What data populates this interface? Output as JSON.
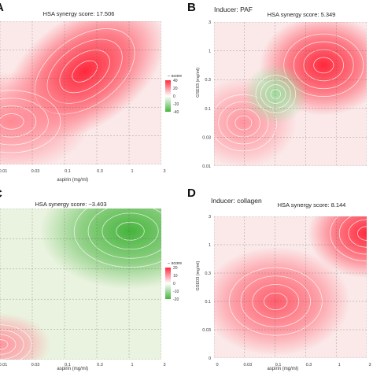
{
  "chart_data": [
    {
      "type": "heatmap",
      "panel_letter": "A",
      "inducer": "",
      "title": "HSA synergy score: 17.506",
      "xlabel": "aspirin (mg/ml)",
      "ylabel": "",
      "x_ticks": [
        "0.01",
        "0.03",
        "0.1",
        "0.3",
        "1",
        "3"
      ],
      "y_ticks": [],
      "legend": {
        "title": "score",
        "ticks": [
          "40",
          "20",
          "0",
          "-20",
          "-40"
        ],
        "range": [
          -40,
          40
        ]
      },
      "hotspots": [
        {
          "x": 0.2,
          "y": 0.35,
          "score": 40,
          "sx": 0.8,
          "sy": 0.55
        },
        {
          "x": 0.015,
          "y": 0.7,
          "score": 22,
          "sx": 0.7,
          "sy": 0.5
        }
      ]
    },
    {
      "type": "heatmap",
      "panel_letter": "B",
      "inducer": "Inducer: PAF",
      "title": "HSA synergy score: 5.349",
      "xlabel": "",
      "ylabel": "GSE03 (mg/ml)",
      "x_ticks": [],
      "y_ticks": [
        "3",
        "1",
        "0.3",
        "0.1",
        "0.03",
        "0.01"
      ],
      "legend": null,
      "hotspots": [
        {
          "x": 0.6,
          "y": 0.3,
          "score": 40,
          "sx": 0.6,
          "sy": 0.5
        },
        {
          "x": 0.03,
          "y": 0.7,
          "score": 20,
          "sx": 0.5,
          "sy": 0.45
        },
        {
          "x": 0.1,
          "y": 0.5,
          "score": -20,
          "sx": 0.3,
          "sy": 0.3
        }
      ]
    },
    {
      "type": "heatmap",
      "panel_letter": "C",
      "inducer": "",
      "title": "HSA synergy score: −3.403",
      "xlabel": "aspirin (mg/ml)",
      "ylabel": "",
      "x_ticks": [
        "0.01",
        "0.03",
        "0.1",
        "0.3",
        "1",
        "3"
      ],
      "y_ticks": [],
      "legend": {
        "title": "score",
        "ticks": [
          "20",
          "10",
          "0",
          "-10",
          "-20"
        ],
        "range": [
          -20,
          20
        ]
      },
      "hotspots": [
        {
          "x": 1,
          "y": 0.15,
          "score": -20,
          "sx": 0.8,
          "sy": 0.55
        },
        {
          "x": 0.01,
          "y": 0.9,
          "score": 10,
          "sx": 0.45,
          "sy": 0.3
        }
      ]
    },
    {
      "type": "heatmap",
      "panel_letter": "D",
      "inducer": "Inducer: collagen",
      "title": "HSA synergy score: 8.144",
      "xlabel": "aspirin (mg/ml)",
      "ylabel": "GSE03 (mg/ml)",
      "x_ticks": [
        "0",
        "0.03",
        "0.1",
        "0.3",
        "1",
        "3"
      ],
      "y_ticks": [
        "3",
        "1",
        "0.3",
        "0.1",
        "0.03",
        "0"
      ],
      "legend": null,
      "hotspots": [
        {
          "x": 0.1,
          "y": 0.6,
          "score": 30,
          "sx": 0.7,
          "sy": 0.55
        },
        {
          "x": 3,
          "y": 0.12,
          "score": 40,
          "sx": 0.55,
          "sy": 0.45
        }
      ]
    }
  ]
}
